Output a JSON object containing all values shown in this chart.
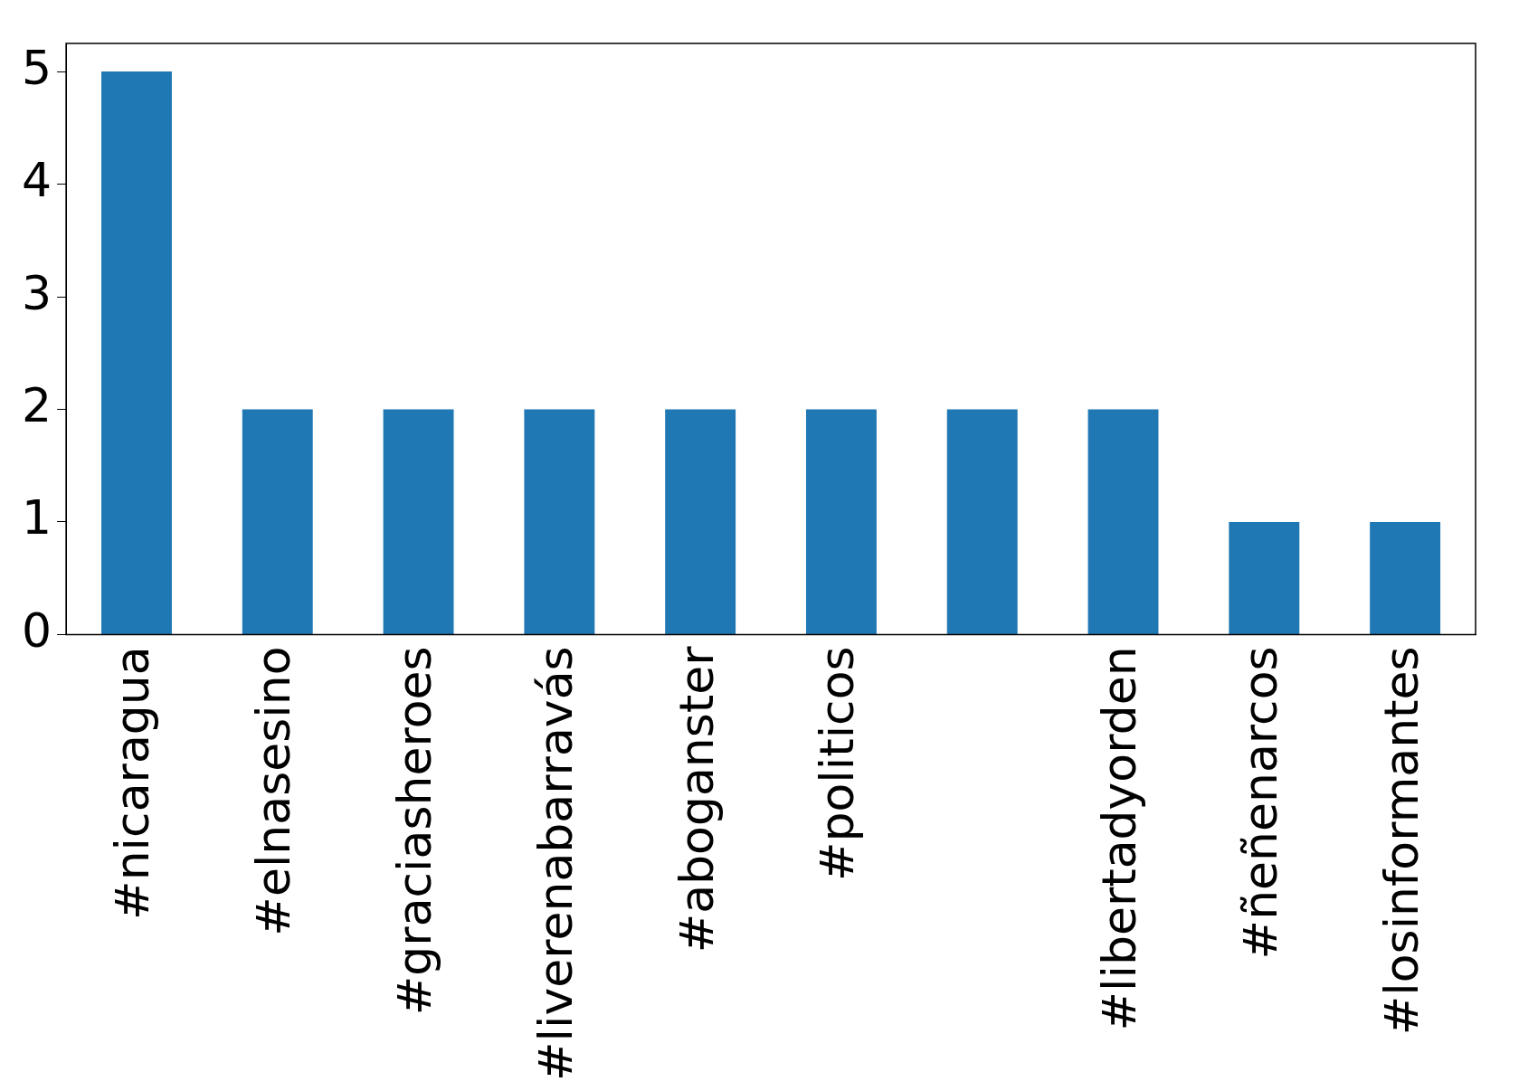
{
  "chart_data": {
    "type": "bar",
    "categories": [
      "#nicaragua",
      "#elnasesino",
      "#graciasheroes",
      "#liverenabarravás",
      "#aboganster",
      "#politicos",
      null,
      "#libertadyorden",
      "#ñeñenarcos",
      "#losinformantes"
    ],
    "values": [
      5,
      2,
      2,
      2,
      2,
      2,
      2,
      2,
      1,
      1
    ],
    "color": "#1f77b4",
    "ylim": [
      0,
      5.25
    ],
    "yticks": [
      0,
      1,
      2,
      3,
      4,
      5
    ],
    "grid": false,
    "legend": false
  }
}
